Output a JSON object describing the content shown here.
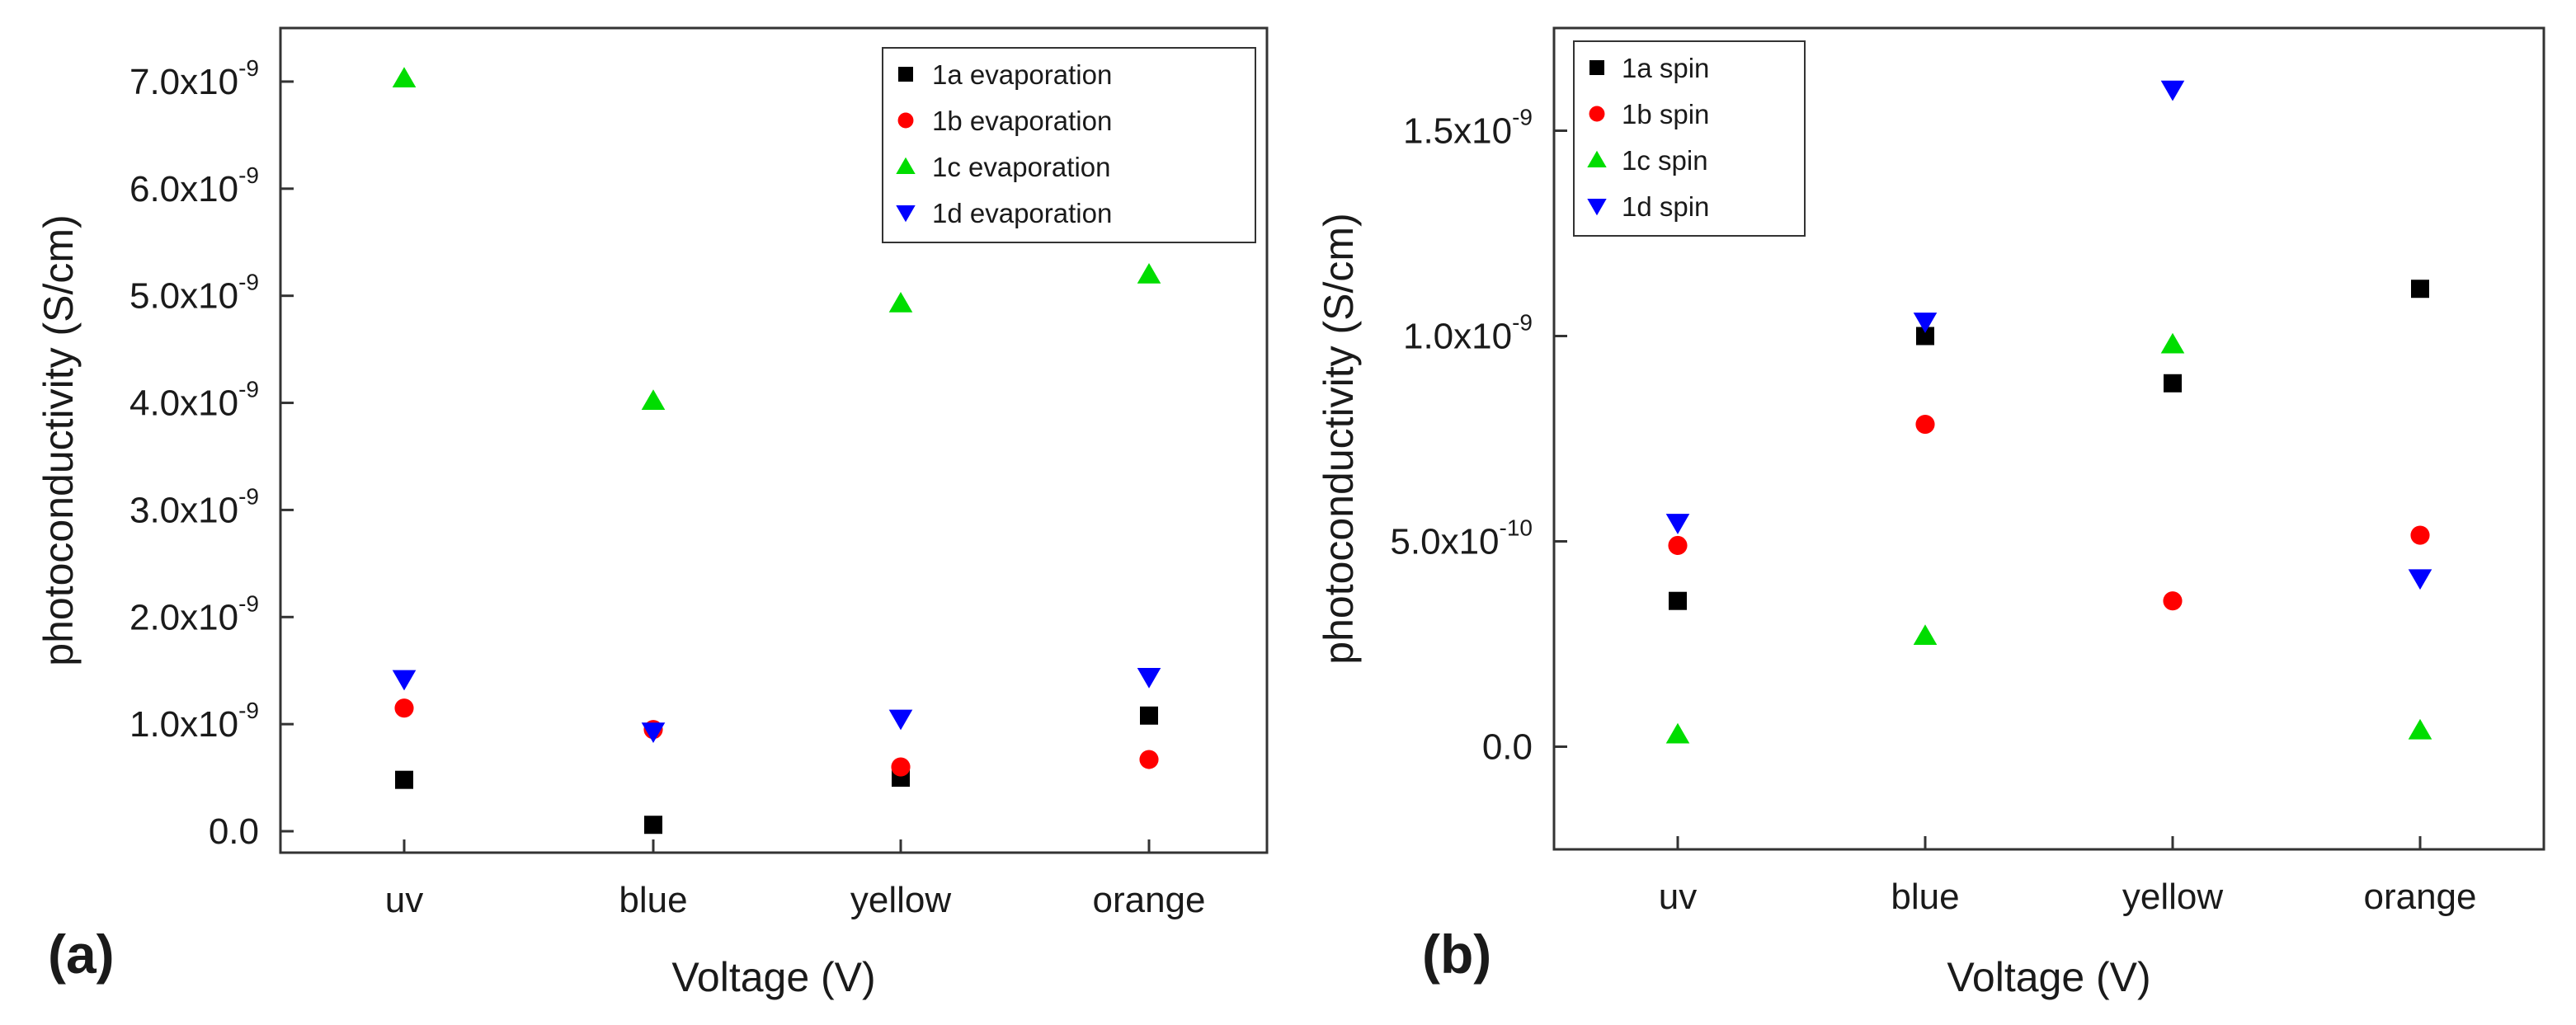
{
  "chart_data": [
    {
      "panel_label": "(a)",
      "type": "scatter",
      "xlabel": "Voltage (V)",
      "ylabel": "photoconductivity (S/cm)",
      "categories": [
        "uv",
        "blue",
        "yellow",
        "orange"
      ],
      "ylim": [
        -2e-10,
        7.5e-09
      ],
      "yticks": [
        {
          "value": 0,
          "label": "0.0",
          "exp": ""
        },
        {
          "value": 1e-09,
          "label": "1.0x10",
          "exp": "-9"
        },
        {
          "value": 2e-09,
          "label": "2.0x10",
          "exp": "-9"
        },
        {
          "value": 3e-09,
          "label": "3.0x10",
          "exp": "-9"
        },
        {
          "value": 4e-09,
          "label": "4.0x10",
          "exp": "-9"
        },
        {
          "value": 5e-09,
          "label": "5.0x10",
          "exp": "-9"
        },
        {
          "value": 6e-09,
          "label": "6.0x10",
          "exp": "-9"
        },
        {
          "value": 7e-09,
          "label": "7.0x10",
          "exp": "-9"
        }
      ],
      "legend_position": "top-right",
      "series": [
        {
          "name": "1a evaporation",
          "marker": "square",
          "color": "#000000",
          "values": [
            4.8e-10,
            6e-11,
            5e-10,
            1.08e-09
          ]
        },
        {
          "name": "1b evaporation",
          "marker": "circle",
          "color": "#ff0000",
          "values": [
            1.15e-09,
            9.5e-10,
            6e-10,
            6.7e-10
          ]
        },
        {
          "name": "1c evaporation",
          "marker": "triangle-up",
          "color": "#00dd00",
          "values": [
            7.03e-09,
            4.02e-09,
            4.93e-09,
            5.2e-09
          ]
        },
        {
          "name": "1d evaporation",
          "marker": "triangle-down",
          "color": "#0000ff",
          "values": [
            1.42e-09,
            9.3e-10,
            1.05e-09,
            1.44e-09
          ]
        }
      ]
    },
    {
      "panel_label": "(b)",
      "type": "scatter",
      "xlabel": "Voltage (V)",
      "ylabel": "photoconductivity (S/cm)",
      "categories": [
        "uv",
        "blue",
        "yellow",
        "orange"
      ],
      "ylim": [
        -2.5e-10,
        1.75e-09
      ],
      "yticks": [
        {
          "value": 0,
          "label": "0.0",
          "exp": ""
        },
        {
          "value": 5e-10,
          "label": "5.0x10",
          "exp": "-10"
        },
        {
          "value": 1e-09,
          "label": "1.0x10",
          "exp": "-9"
        },
        {
          "value": 1.5e-09,
          "label": "1.5x10",
          "exp": "-9"
        }
      ],
      "legend_position": "top-left",
      "series": [
        {
          "name": "1a spin",
          "marker": "square",
          "color": "#000000",
          "values": [
            3.55e-10,
            1e-09,
            8.85e-10,
            1.115e-09
          ]
        },
        {
          "name": "1b spin",
          "marker": "circle",
          "color": "#ff0000",
          "values": [
            4.9e-10,
            7.85e-10,
            3.55e-10,
            5.15e-10
          ]
        },
        {
          "name": "1c spin",
          "marker": "triangle-up",
          "color": "#00dd00",
          "values": [
            3e-11,
            2.7e-10,
            9.8e-10,
            4e-11
          ]
        },
        {
          "name": "1d spin",
          "marker": "triangle-down",
          "color": "#0000ff",
          "values": [
            5.45e-10,
            1.035e-09,
            1.6e-09,
            4.1e-10
          ]
        }
      ]
    }
  ]
}
